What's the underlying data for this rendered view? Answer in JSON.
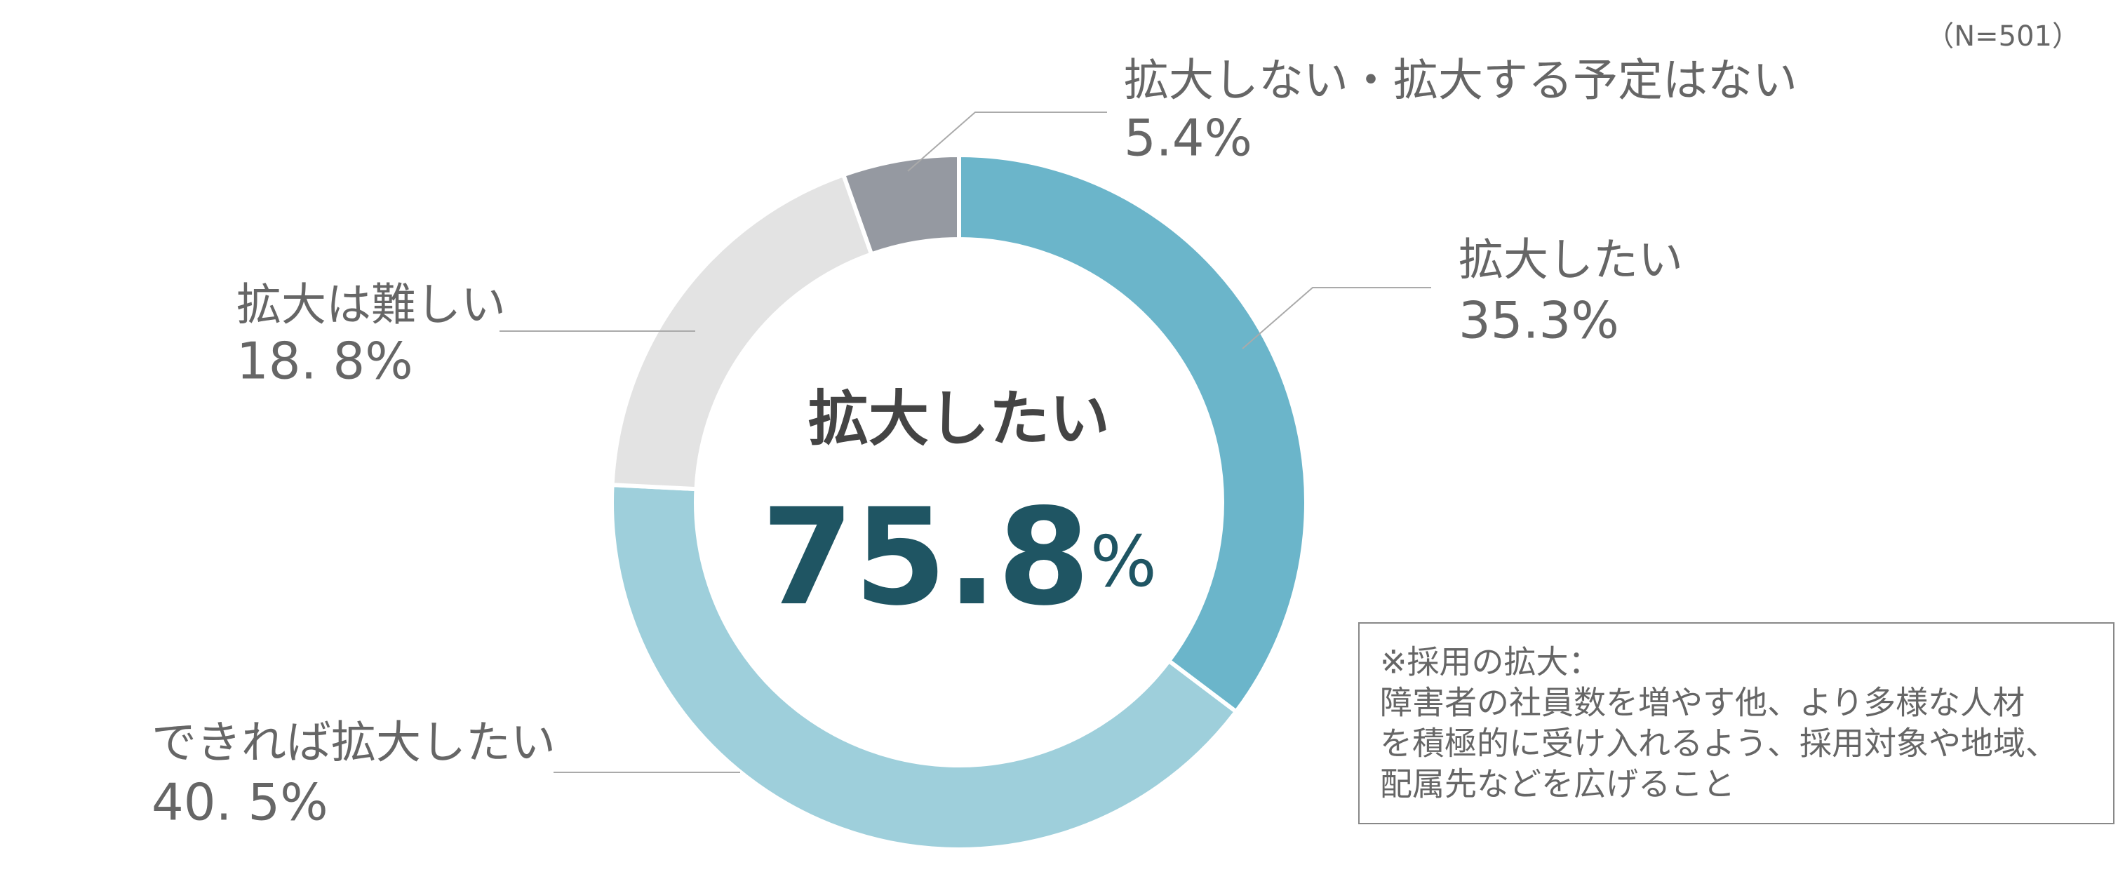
{
  "chart_data": {
    "type": "pie",
    "note_n": "（N=501）",
    "categories": [
      "拡大したい",
      "できれば拡大したい",
      "拡大は難しい",
      "拡大しない・拡大する予定はない"
    ],
    "values": [
      35.3,
      40.5,
      18.8,
      5.4
    ],
    "value_labels": [
      "35.3%",
      "40. 5%",
      "18. 8%",
      "5.4%"
    ],
    "colors": [
      "#6bb5ca",
      "#9ecfdb",
      "#e3e3e3",
      "#9599a1"
    ],
    "center_title": "拡大したい",
    "center_value": 75.8,
    "center_unit": "%",
    "definition": [
      "※採用の拡大：",
      "障害者の社員数を増やす他、より多様な人材",
      "を積極的に受け入れるよう、採用対象や地域、",
      "配属先などを広げること"
    ]
  }
}
